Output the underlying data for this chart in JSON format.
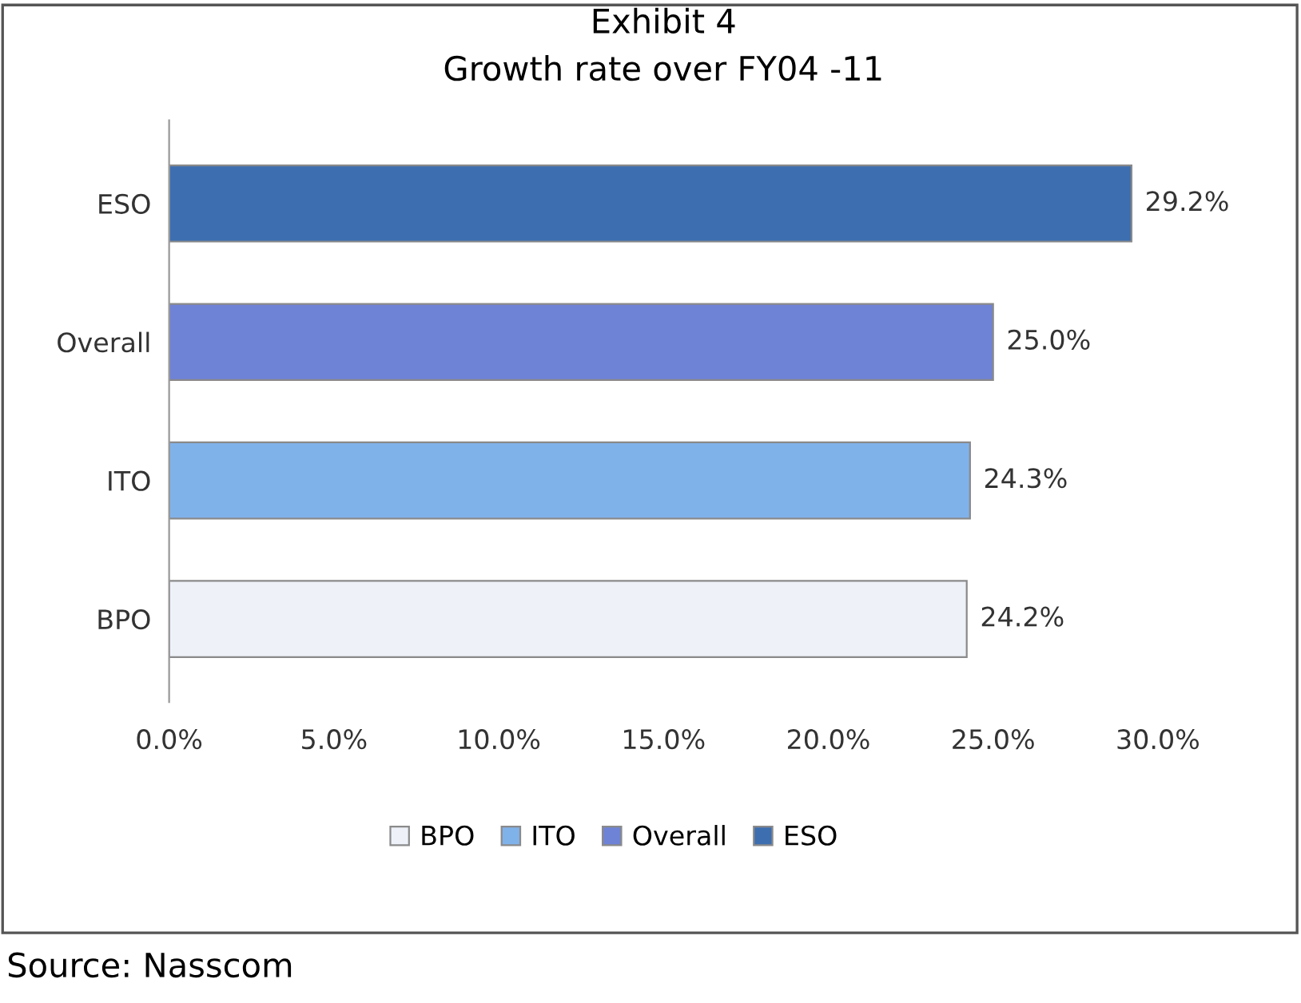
{
  "chart_data": {
    "type": "bar",
    "orientation": "horizontal",
    "title": "Exhibit 4\nGrowth rate over FY04 -11",
    "categories": [
      "ESO",
      "Overall",
      "ITO",
      "BPO"
    ],
    "series": [
      {
        "name": "BPO",
        "color": "#eef2f8",
        "values": [
          null,
          null,
          null,
          24.2
        ],
        "value_labels": [
          null,
          null,
          null,
          "24.2%"
        ]
      },
      {
        "name": "ITO",
        "color": "#80b2ea",
        "values": [
          null,
          null,
          24.3,
          null
        ],
        "value_labels": [
          null,
          null,
          "24.3%",
          null
        ]
      },
      {
        "name": "Overall",
        "color": "#6e82d6",
        "values": [
          null,
          25.0,
          null,
          null
        ],
        "value_labels": [
          null,
          "25.0%",
          null,
          null
        ]
      },
      {
        "name": "ESO",
        "color": "#3d6eb0",
        "values": [
          29.2,
          null,
          null,
          null
        ],
        "value_labels": [
          "29.2%",
          null,
          null,
          null
        ]
      }
    ],
    "xlim": [
      0,
      30
    ],
    "xticks": [
      {
        "value": 0,
        "label": "0.0%"
      },
      {
        "value": 5,
        "label": "5.0%"
      },
      {
        "value": 10,
        "label": "10.0%"
      },
      {
        "value": 15,
        "label": "15.0%"
      },
      {
        "value": 20,
        "label": "20.0%"
      },
      {
        "value": 25,
        "label": "25.0%"
      },
      {
        "value": 30,
        "label": "30.0%"
      }
    ],
    "grid": false,
    "legend": "bottom",
    "annotations": [
      "Source: Nasscom"
    ]
  }
}
